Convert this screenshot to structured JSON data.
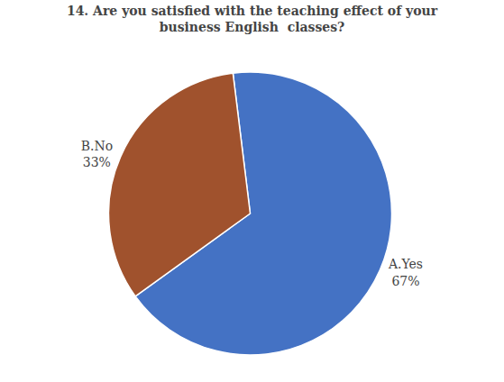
{
  "chart_data": {
    "type": "pie",
    "title": "14. Are you satisfied with the teaching effect of your\nbusiness English  classes?",
    "categories": [
      "A.Yes",
      "B.No"
    ],
    "values": [
      67,
      33
    ],
    "value_labels": [
      "67%",
      "33%"
    ],
    "colors": [
      "#4472C4",
      "#A0522D"
    ],
    "data_labels": true
  }
}
